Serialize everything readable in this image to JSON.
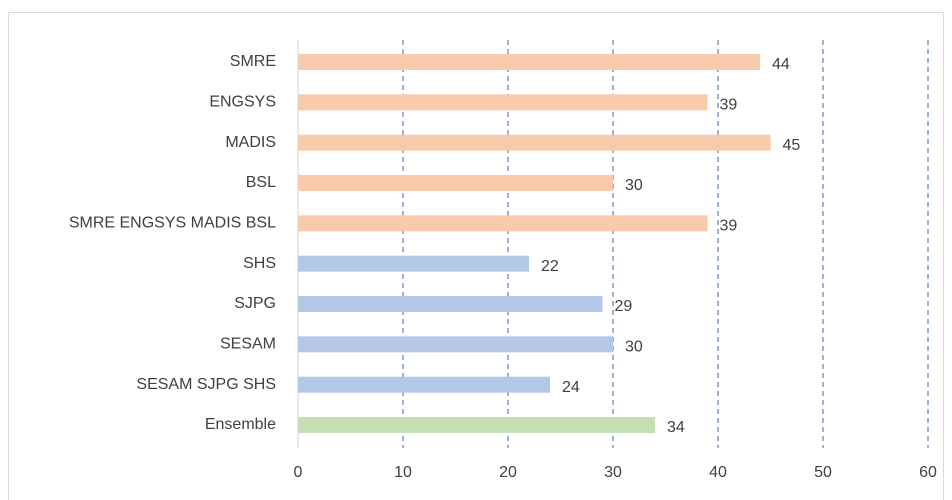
{
  "chart_data": {
    "type": "bar",
    "orientation": "horizontal",
    "categories": [
      "SMRE",
      "ENGSYS",
      "MADIS",
      "BSL",
      "SMRE ENGSYS MADIS BSL",
      "SHS",
      "SJPG",
      "SESAM",
      "SESAM SJPG SHS",
      "Ensemble"
    ],
    "values": [
      44,
      39,
      45,
      30,
      39,
      22,
      29,
      30,
      24,
      34
    ],
    "colors": [
      "#f8cbad",
      "#f8cbad",
      "#f8cbad",
      "#f8cbad",
      "#f8cbad",
      "#b4c7e7",
      "#b4c7e7",
      "#b4c7e7",
      "#b4c7e7",
      "#c5e0b4"
    ],
    "xlim": [
      0,
      60
    ],
    "xticks": [
      0,
      10,
      20,
      30,
      40,
      50,
      60
    ],
    "grid": true
  }
}
